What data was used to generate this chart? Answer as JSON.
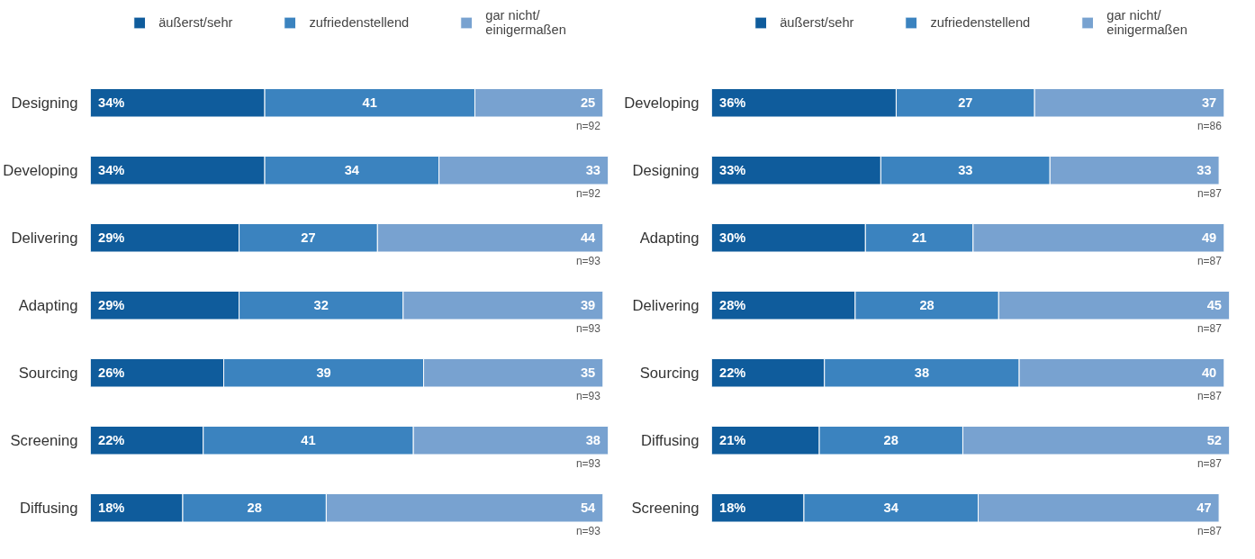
{
  "chart_data": [
    {
      "type": "bar",
      "orientation": "horizontal",
      "stacked": true,
      "legend": "top",
      "grid": false,
      "tick_labels": "y",
      "xlim": [
        0,
        101
      ],
      "categories": [
        "Designing",
        "Developing",
        "Delivering",
        "Adapting",
        "Sourcing",
        "Screening",
        "Diffusing"
      ],
      "series": [
        {
          "name": "äußerst/sehr",
          "color": "#0f5c9c",
          "values": [
            34,
            34,
            29,
            29,
            26,
            22,
            18
          ],
          "value_labels": [
            "34%",
            "34%",
            "29%",
            "29%",
            "26%",
            "22%",
            "18%"
          ]
        },
        {
          "name": "zufriedenstellend",
          "color": "#3b83bf",
          "values": [
            41,
            34,
            27,
            32,
            39,
            41,
            28
          ],
          "value_labels": [
            "41",
            "34",
            "27",
            "32",
            "39",
            "41",
            "28"
          ]
        },
        {
          "name": "gar nicht/\neinigermaßen",
          "color": "#78a2d0",
          "values": [
            25,
            33,
            44,
            39,
            35,
            38,
            54
          ],
          "value_labels": [
            "25",
            "33",
            "44",
            "39",
            "35",
            "38",
            "54"
          ]
        }
      ],
      "annotations": [
        "n=92",
        "n=92",
        "n=93",
        "n=93",
        "n=93",
        "n=93",
        "n=93"
      ]
    },
    {
      "type": "bar",
      "orientation": "horizontal",
      "stacked": true,
      "legend": "top",
      "grid": false,
      "tick_labels": "y",
      "xlim": [
        0,
        101
      ],
      "categories": [
        "Developing",
        "Designing",
        "Adapting",
        "Delivering",
        "Sourcing",
        "Diffusing",
        "Screening"
      ],
      "series": [
        {
          "name": "äußerst/sehr",
          "color": "#0f5c9c",
          "values": [
            36,
            33,
            30,
            28,
            22,
            21,
            18
          ],
          "value_labels": [
            "36%",
            "33%",
            "30%",
            "28%",
            "22%",
            "21%",
            "18%"
          ]
        },
        {
          "name": "zufriedenstellend",
          "color": "#3b83bf",
          "values": [
            27,
            33,
            21,
            28,
            38,
            28,
            34
          ],
          "value_labels": [
            "27",
            "33",
            "21",
            "28",
            "38",
            "28",
            "34"
          ]
        },
        {
          "name": "gar nicht/\neinigermaßen",
          "color": "#78a2d0",
          "values": [
            37,
            33,
            49,
            45,
            40,
            52,
            47
          ],
          "value_labels": [
            "37",
            "33",
            "49",
            "45",
            "40",
            "52",
            "47"
          ]
        }
      ],
      "annotations": [
        "n=86",
        "n=87",
        "n=87",
        "n=87",
        "n=87",
        "n=87",
        "n=87"
      ]
    }
  ]
}
